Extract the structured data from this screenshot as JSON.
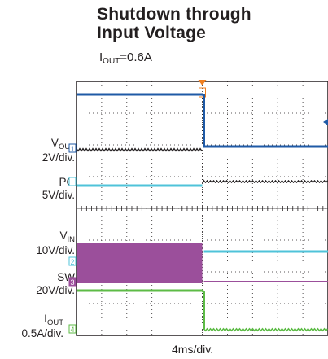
{
  "chart_data": {
    "type": "line",
    "title_line1": "Shutdown through",
    "title_line2": "Input Voltage",
    "subtitle_main": "I",
    "subtitle_sub": "OUT",
    "subtitle_rest": "=0.6A",
    "xlabel": "4ms/div.",
    "x_divisions": 10,
    "y_divisions": 8,
    "trigger_division": 5,
    "channels": [
      {
        "name_main": "V",
        "name_sub": "OUT",
        "scale": "2V/div.",
        "marker": "1",
        "color": "#231f20"
      },
      {
        "name_main": "PG",
        "name_sub": "",
        "scale": "5V/div.",
        "marker": "",
        "color": "#4fc3d9"
      },
      {
        "name_main": "V",
        "name_sub": "IN",
        "scale": "10V/div.",
        "marker": "2",
        "color": "#4fc3d9"
      },
      {
        "name_main": "SW",
        "name_sub": "",
        "scale": "20V/div.",
        "marker": "3",
        "color": "#9b4f9b"
      },
      {
        "name_main": "I",
        "name_sub": "OUT",
        "scale": "0.5A/div.",
        "marker": "4",
        "color": "#5dbb46"
      }
    ],
    "colors": {
      "screen_bg": "#ffffff",
      "grid": "#231f20",
      "vin": "#1f5aa6",
      "vout": "#231f20",
      "pg": "#4fc3d9",
      "sw": "#9b4f9b",
      "iout": "#5dbb46",
      "trigger": "#f07f1f"
    }
  }
}
